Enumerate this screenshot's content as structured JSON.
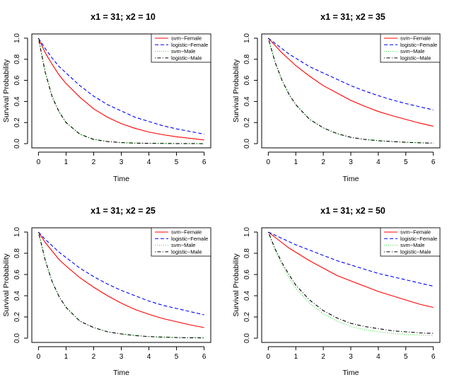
{
  "colors": {
    "svm_female": "#ff0000",
    "logistic_female": "#0000ff",
    "svm_male": "#33dd33",
    "logistic_male": "#000000"
  },
  "chart_data": [
    {
      "type": "line",
      "title": "x1 = 31; x2 = 10",
      "xlabel": "Time",
      "ylabel": "Survival Probability",
      "xlim": [
        0,
        6
      ],
      "ylim": [
        0,
        1
      ],
      "xticks": [
        "0",
        "1",
        "2",
        "3",
        "4",
        "5",
        "6"
      ],
      "yticks": [
        "0.0",
        "0.2",
        "0.4",
        "0.6",
        "0.8",
        "1.0"
      ],
      "legend_position": "top-right",
      "x": [
        0,
        0.25,
        0.5,
        0.75,
        1,
        1.5,
        2,
        2.5,
        3,
        3.5,
        4,
        4.5,
        5,
        5.5,
        6
      ],
      "series": [
        {
          "name": "svm−Female",
          "style": "solid",
          "values": [
            1.0,
            0.86,
            0.75,
            0.65,
            0.57,
            0.44,
            0.33,
            0.25,
            0.19,
            0.145,
            0.11,
            0.085,
            0.065,
            0.05,
            0.035
          ]
        },
        {
          "name": "logistic−Female",
          "style": "dashed",
          "values": [
            1.0,
            0.9,
            0.81,
            0.73,
            0.67,
            0.55,
            0.45,
            0.37,
            0.31,
            0.25,
            0.21,
            0.17,
            0.14,
            0.115,
            0.09
          ]
        },
        {
          "name": "svm−Male",
          "style": "dotted",
          "values": [
            1.0,
            0.68,
            0.45,
            0.3,
            0.2,
            0.09,
            0.04,
            0.02,
            0.01,
            0.005,
            0.003,
            0.002,
            0.001,
            0.0005,
            0.0
          ]
        },
        {
          "name": "logistic−Male",
          "style": "dotdash",
          "values": [
            1.0,
            0.67,
            0.44,
            0.3,
            0.2,
            0.09,
            0.04,
            0.02,
            0.01,
            0.005,
            0.003,
            0.002,
            0.001,
            0.0005,
            0.0
          ]
        }
      ]
    },
    {
      "type": "line",
      "title": "x1 = 31; x2 = 35",
      "xlabel": "Time",
      "ylabel": "Survival Probability",
      "xlim": [
        0,
        6
      ],
      "ylim": [
        0,
        1
      ],
      "xticks": [
        "0",
        "1",
        "2",
        "3",
        "4",
        "5",
        "6"
      ],
      "yticks": [
        "0.0",
        "0.2",
        "0.4",
        "0.6",
        "0.8",
        "1.0"
      ],
      "legend_position": "top-right",
      "x": [
        0,
        0.25,
        0.5,
        0.75,
        1,
        1.5,
        2,
        2.5,
        3,
        3.5,
        4,
        4.5,
        5,
        5.5,
        6
      ],
      "series": [
        {
          "name": "svm−Female",
          "style": "solid",
          "values": [
            1.0,
            0.93,
            0.86,
            0.8,
            0.74,
            0.64,
            0.55,
            0.48,
            0.41,
            0.355,
            0.305,
            0.265,
            0.23,
            0.195,
            0.165
          ]
        },
        {
          "name": "logistic−Female",
          "style": "dashed",
          "values": [
            1.0,
            0.95,
            0.9,
            0.85,
            0.81,
            0.73,
            0.67,
            0.61,
            0.55,
            0.5,
            0.455,
            0.415,
            0.38,
            0.35,
            0.32
          ]
        },
        {
          "name": "svm−Male",
          "style": "dotted",
          "values": [
            1.0,
            0.77,
            0.6,
            0.47,
            0.37,
            0.23,
            0.15,
            0.095,
            0.06,
            0.04,
            0.028,
            0.02,
            0.013,
            0.008,
            0.005
          ]
        },
        {
          "name": "logistic−Male",
          "style": "dotdash",
          "values": [
            1.0,
            0.77,
            0.6,
            0.47,
            0.37,
            0.23,
            0.15,
            0.095,
            0.06,
            0.04,
            0.028,
            0.02,
            0.013,
            0.008,
            0.005
          ]
        }
      ]
    },
    {
      "type": "line",
      "title": "x1 = 31; x2 = 25",
      "xlabel": "Time",
      "ylabel": "Survival Probability",
      "xlim": [
        0,
        6
      ],
      "ylim": [
        0,
        1
      ],
      "xticks": [
        "0",
        "1",
        "2",
        "3",
        "4",
        "5",
        "6"
      ],
      "yticks": [
        "0.0",
        "0.2",
        "0.4",
        "0.6",
        "0.8",
        "1.0"
      ],
      "legend_position": "top-right",
      "x": [
        0,
        0.25,
        0.5,
        0.75,
        1,
        1.5,
        2,
        2.5,
        3,
        3.5,
        4,
        4.5,
        5,
        5.5,
        6
      ],
      "series": [
        {
          "name": "svm−Female",
          "style": "solid",
          "values": [
            1.0,
            0.9,
            0.82,
            0.74,
            0.68,
            0.57,
            0.48,
            0.4,
            0.33,
            0.27,
            0.225,
            0.185,
            0.155,
            0.125,
            0.1
          ]
        },
        {
          "name": "logistic−Female",
          "style": "dashed",
          "values": [
            1.0,
            0.93,
            0.87,
            0.81,
            0.76,
            0.66,
            0.58,
            0.51,
            0.45,
            0.4,
            0.35,
            0.31,
            0.28,
            0.25,
            0.22
          ]
        },
        {
          "name": "svm−Male",
          "style": "dotted",
          "values": [
            1.0,
            0.73,
            0.53,
            0.39,
            0.29,
            0.16,
            0.1,
            0.06,
            0.04,
            0.025,
            0.015,
            0.01,
            0.006,
            0.004,
            0.003
          ]
        },
        {
          "name": "logistic−Male",
          "style": "dotdash",
          "values": [
            1.0,
            0.73,
            0.53,
            0.39,
            0.29,
            0.16,
            0.1,
            0.06,
            0.04,
            0.025,
            0.015,
            0.01,
            0.006,
            0.004,
            0.003
          ]
        }
      ]
    },
    {
      "type": "line",
      "title": "x1 = 31; x2 = 50",
      "xlabel": "Time",
      "ylabel": "Survival Probability",
      "xlim": [
        0,
        6
      ],
      "ylim": [
        0,
        1
      ],
      "xticks": [
        "0",
        "1",
        "2",
        "3",
        "4",
        "5",
        "6"
      ],
      "yticks": [
        "0.0",
        "0.2",
        "0.4",
        "0.6",
        "0.8",
        "1.0"
      ],
      "legend_position": "top-right",
      "x": [
        0,
        0.25,
        0.5,
        0.75,
        1,
        1.5,
        2,
        2.5,
        3,
        3.5,
        4,
        4.5,
        5,
        5.5,
        6
      ],
      "series": [
        {
          "name": "svm−Female",
          "style": "solid",
          "values": [
            1.0,
            0.95,
            0.9,
            0.85,
            0.81,
            0.73,
            0.66,
            0.59,
            0.54,
            0.49,
            0.44,
            0.4,
            0.36,
            0.32,
            0.29
          ]
        },
        {
          "name": "logistic−Female",
          "style": "dashed",
          "values": [
            1.0,
            0.97,
            0.94,
            0.91,
            0.88,
            0.83,
            0.78,
            0.73,
            0.69,
            0.65,
            0.61,
            0.58,
            0.55,
            0.52,
            0.49
          ]
        },
        {
          "name": "svm−Male",
          "style": "dotted",
          "values": [
            1.0,
            0.83,
            0.69,
            0.57,
            0.47,
            0.33,
            0.23,
            0.16,
            0.11,
            0.08,
            0.06,
            0.045,
            0.035,
            0.03,
            0.025
          ]
        },
        {
          "name": "logistic−Male",
          "style": "dotdash",
          "values": [
            1.0,
            0.84,
            0.71,
            0.6,
            0.5,
            0.36,
            0.26,
            0.19,
            0.14,
            0.11,
            0.09,
            0.07,
            0.06,
            0.05,
            0.045
          ]
        }
      ]
    }
  ]
}
